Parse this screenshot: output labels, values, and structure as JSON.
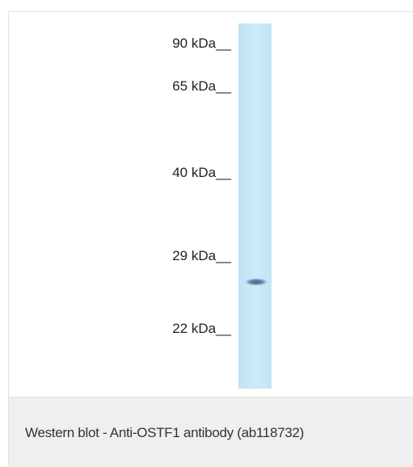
{
  "markers": [
    "90 kDa__",
    "65 kDa__",
    "40 kDa__",
    "29 kDa__",
    "22 kDa__"
  ],
  "caption": "Western blot - Anti-OSTF1 antibody (ab118732)"
}
